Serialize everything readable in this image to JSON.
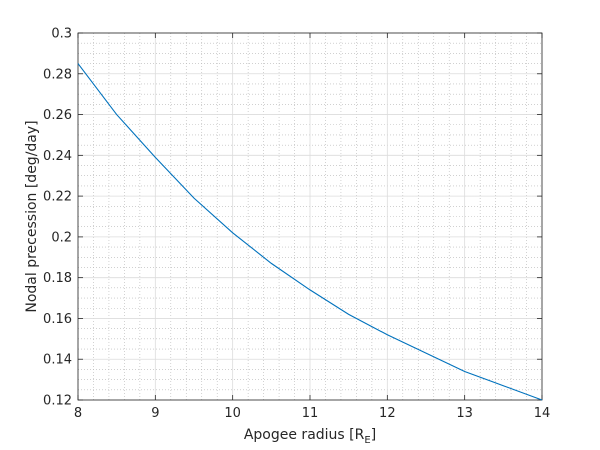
{
  "chart_data": {
    "type": "line",
    "xlabel": "Apogee radius [R",
    "xlabel_sub": "E",
    "xlabel_end": "]",
    "ylabel": "Nodal precession [deg/day]",
    "xlim": [
      8,
      14
    ],
    "ylim": [
      0.12,
      0.3
    ],
    "x_ticks": [
      "8",
      "9",
      "10",
      "11",
      "12",
      "13",
      "14"
    ],
    "y_ticks": [
      "0.12",
      "0.14",
      "0.16",
      "0.18",
      "0.2",
      "0.22",
      "0.24",
      "0.26",
      "0.28",
      "0.3"
    ],
    "grid": true,
    "minor_grid": true,
    "series_color": "#0072BD",
    "series": [
      {
        "x": [
          8,
          8.5,
          9,
          9.5,
          10,
          10.5,
          11,
          11.5,
          12,
          12.5,
          13,
          13.5,
          14
        ],
        "y": [
          0.285,
          0.26,
          0.239,
          0.219,
          0.202,
          0.187,
          0.174,
          0.162,
          0.152,
          0.143,
          0.134,
          0.127,
          0.12
        ]
      }
    ]
  }
}
